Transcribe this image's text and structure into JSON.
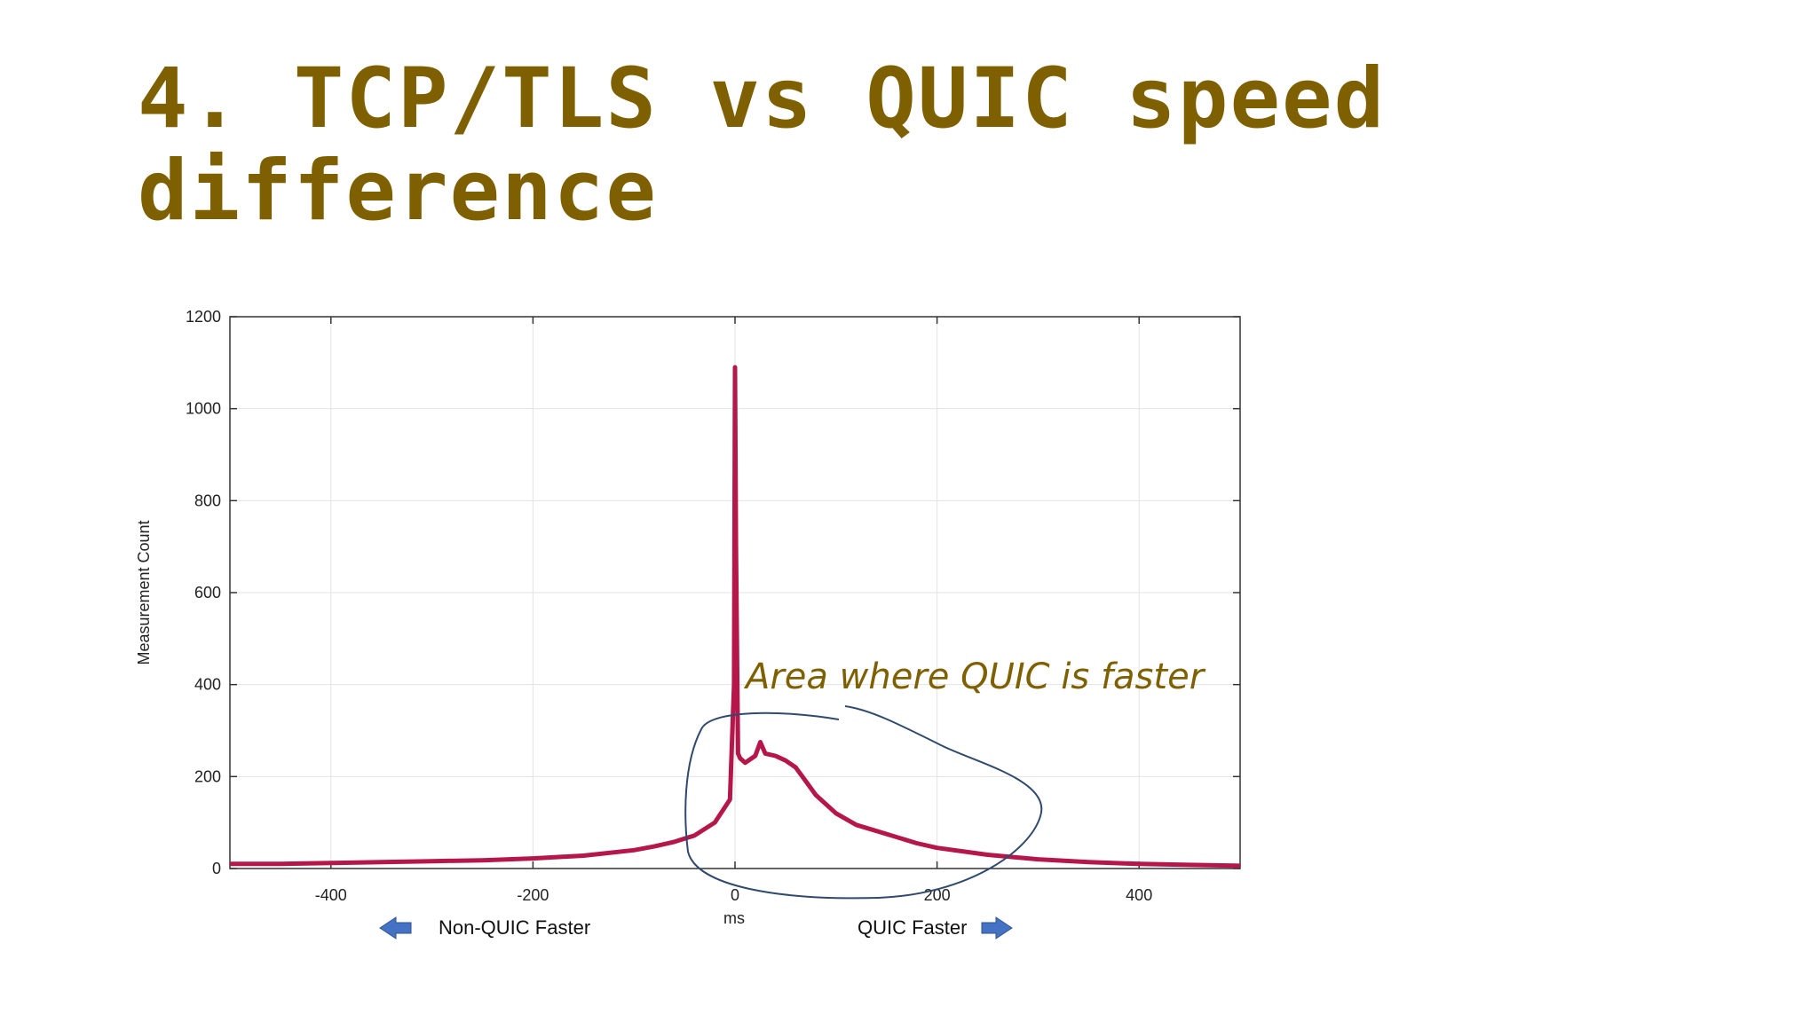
{
  "slide": {
    "title_line1": "4. TCP/TLS vs QUIC speed",
    "title_line2": "difference",
    "title_color": "#7f6000"
  },
  "annotation": {
    "text": "Area where QUIC is faster",
    "color": "#7f6000",
    "circle_color": "#2f4a6e"
  },
  "footer": {
    "left_label": "Non-QUIC Faster",
    "right_label": "QUIC Faster",
    "arrow_color": "#4472c4"
  },
  "chart_data": {
    "type": "line",
    "title": "",
    "xlabel": "ms",
    "ylabel": "Measurement Count",
    "xlim": [
      -500,
      500
    ],
    "ylim": [
      0,
      1200
    ],
    "xticks": [
      -400,
      -200,
      0,
      200,
      400
    ],
    "yticks": [
      0,
      200,
      400,
      600,
      800,
      1000,
      1200
    ],
    "grid": true,
    "series": [
      {
        "color": "#b5174a",
        "x": [
          -500,
          -450,
          -400,
          -350,
          -300,
          -250,
          -200,
          -150,
          -100,
          -80,
          -60,
          -40,
          -20,
          -5,
          -1,
          0,
          1,
          3,
          5,
          10,
          20,
          25,
          30,
          40,
          50,
          60,
          70,
          80,
          100,
          120,
          150,
          180,
          200,
          250,
          300,
          350,
          400,
          450,
          500
        ],
        "y": [
          10,
          10,
          12,
          14,
          16,
          18,
          22,
          28,
          40,
          48,
          58,
          72,
          100,
          150,
          400,
          1090,
          700,
          250,
          240,
          230,
          245,
          275,
          250,
          245,
          235,
          220,
          190,
          160,
          120,
          95,
          75,
          55,
          45,
          30,
          20,
          14,
          10,
          8,
          6
        ]
      }
    ]
  }
}
